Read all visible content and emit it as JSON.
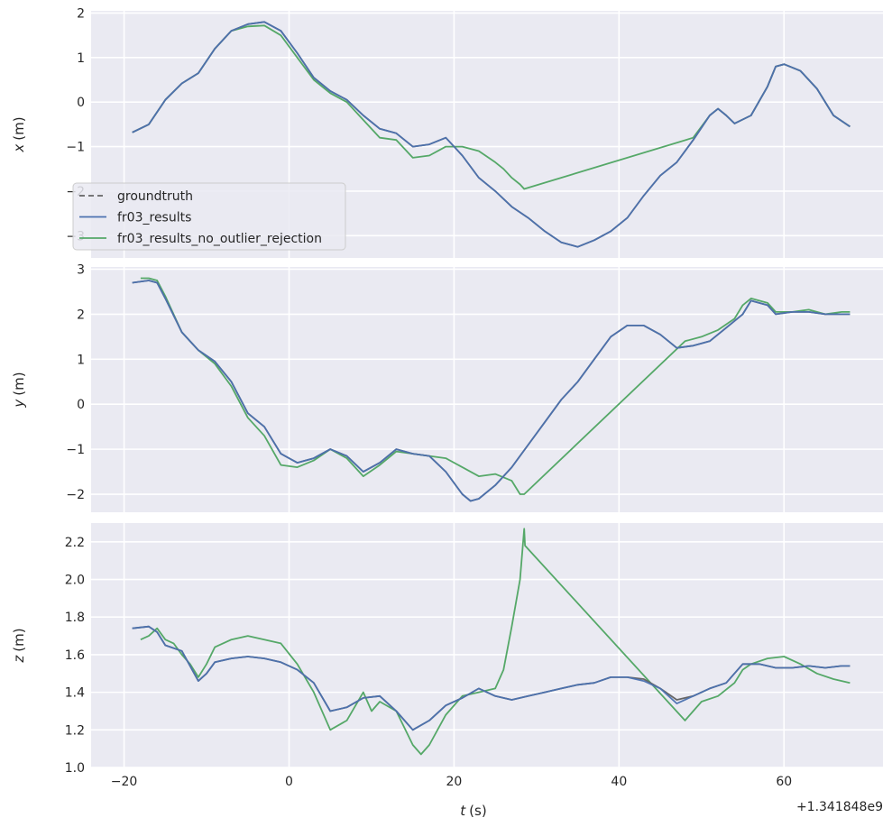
{
  "chart_data": {
    "type": "line",
    "colors": {
      "background": "#eaeaf2",
      "grid": "#ffffff",
      "groundtruth": "#666666",
      "fr03_results": "#4c72b0",
      "fr03_results_no_outlier_rejection": "#55a868"
    },
    "xlabel_var": "t",
    "xlabel_unit": "(s)",
    "x_offset_text": "+1.341848e9",
    "xlim": [
      -24,
      72
    ],
    "xticks": [
      -20,
      0,
      20,
      40,
      60
    ],
    "xtick_labels": [
      "−20",
      "0",
      "20",
      "40",
      "60"
    ],
    "grid": true,
    "legend": {
      "placement": "lower-left of top panel",
      "entries": [
        {
          "label": "groundtruth",
          "style": "dashed",
          "color": "#666666"
        },
        {
          "label": "fr03_results",
          "style": "solid",
          "color": "#4c72b0"
        },
        {
          "label": "fr03_results_no_outlier_rejection",
          "style": "solid",
          "color": "#55a868"
        }
      ]
    },
    "panels": [
      {
        "ylabel_var": "x",
        "ylabel_unit": "(m)",
        "ylim": [
          -3.5,
          2.05
        ],
        "yticks": [
          -3,
          -2,
          -1,
          0,
          1,
          2
        ],
        "ytick_labels": [
          "−3",
          "−2",
          "−1",
          "0",
          "1",
          "2"
        ],
        "series": [
          {
            "name": "groundtruth",
            "x": [
              -19,
              -17,
              -15,
              -13,
              -11,
              -9,
              -7,
              -5,
              -3,
              -1,
              1,
              3,
              5,
              7,
              9,
              11,
              13,
              15,
              17,
              19,
              21,
              23,
              25,
              27,
              29,
              31,
              33,
              35,
              37,
              39,
              41,
              43,
              45,
              47,
              49,
              51,
              52,
              53,
              54,
              56,
              58,
              59,
              60,
              62,
              64,
              66,
              68
            ],
            "y": [
              -0.68,
              -0.5,
              0.05,
              0.42,
              0.65,
              1.2,
              1.6,
              1.75,
              1.8,
              1.6,
              1.1,
              0.55,
              0.25,
              0.05,
              -0.3,
              -0.6,
              -0.7,
              -1.0,
              -0.95,
              -0.8,
              -1.2,
              -1.7,
              -2.0,
              -2.35,
              -2.6,
              -2.9,
              -3.15,
              -3.25,
              -3.1,
              -2.9,
              -2.6,
              -2.1,
              -1.65,
              -1.35,
              -0.85,
              -0.3,
              -0.15,
              -0.3,
              -0.48,
              -0.3,
              0.35,
              0.8,
              0.85,
              0.7,
              0.3,
              -0.3,
              -0.55
            ]
          },
          {
            "name": "fr03_results",
            "x": [
              -19,
              -17,
              -15,
              -13,
              -11,
              -9,
              -7,
              -5,
              -3,
              -1,
              1,
              3,
              5,
              7,
              9,
              11,
              13,
              15,
              17,
              19,
              21,
              23,
              25,
              27,
              29,
              31,
              33,
              35,
              37,
              39,
              41,
              43,
              45,
              47,
              49,
              51,
              52,
              53,
              54,
              56,
              58,
              59,
              60,
              62,
              64,
              66,
              68
            ],
            "y": [
              -0.68,
              -0.5,
              0.05,
              0.42,
              0.65,
              1.2,
              1.6,
              1.75,
              1.8,
              1.6,
              1.1,
              0.55,
              0.25,
              0.05,
              -0.3,
              -0.6,
              -0.7,
              -1.0,
              -0.95,
              -0.8,
              -1.2,
              -1.7,
              -2.0,
              -2.35,
              -2.6,
              -2.9,
              -3.15,
              -3.25,
              -3.1,
              -2.9,
              -2.6,
              -2.1,
              -1.65,
              -1.35,
              -0.85,
              -0.3,
              -0.15,
              -0.3,
              -0.48,
              -0.3,
              0.35,
              0.8,
              0.85,
              0.7,
              0.3,
              -0.3,
              -0.55
            ]
          },
          {
            "name": "fr03_results_no_outlier_rejection",
            "x": [
              -19,
              -17,
              -15,
              -13,
              -11,
              -9,
              -7,
              -5,
              -3,
              -1,
              1,
              3,
              5,
              7,
              9,
              11,
              13,
              15,
              17,
              19,
              21,
              23,
              25,
              26,
              27,
              28,
              28.5,
              49,
              51,
              52,
              53,
              54,
              56,
              58,
              59,
              60,
              62,
              64,
              66,
              68
            ],
            "y": [
              -0.68,
              -0.5,
              0.05,
              0.42,
              0.65,
              1.2,
              1.6,
              1.7,
              1.72,
              1.5,
              1.0,
              0.5,
              0.2,
              0.0,
              -0.4,
              -0.8,
              -0.85,
              -1.25,
              -1.2,
              -1.0,
              -1.0,
              -1.1,
              -1.35,
              -1.5,
              -1.7,
              -1.85,
              -1.95,
              -0.8,
              -0.3,
              -0.15,
              -0.3,
              -0.48,
              -0.3,
              0.35,
              0.8,
              0.85,
              0.7,
              0.3,
              -0.3,
              -0.55
            ]
          }
        ]
      },
      {
        "ylabel_var": "y",
        "ylabel_unit": "(m)",
        "ylim": [
          -2.4,
          3.05
        ],
        "yticks": [
          -2,
          -1,
          0,
          1,
          2,
          3
        ],
        "ytick_labels": [
          "−2",
          "−1",
          "0",
          "1",
          "2",
          "3"
        ],
        "series": [
          {
            "name": "groundtruth",
            "x": [
              -19,
              -17,
              -16,
              -15,
              -13,
              -11,
              -9,
              -7,
              -5,
              -3,
              -1,
              1,
              3,
              5,
              7,
              9,
              11,
              13,
              15,
              17,
              19,
              21,
              22,
              23,
              25,
              27,
              29,
              31,
              33,
              35,
              37,
              39,
              41,
              43,
              45,
              47,
              49,
              51,
              53,
              55,
              56,
              58,
              59,
              61,
              63,
              65,
              67,
              68
            ],
            "y": [
              2.7,
              2.75,
              2.7,
              2.35,
              1.6,
              1.2,
              0.95,
              0.5,
              -0.2,
              -0.5,
              -1.1,
              -1.3,
              -1.2,
              -1.0,
              -1.15,
              -1.5,
              -1.3,
              -1.0,
              -1.1,
              -1.15,
              -1.5,
              -2.0,
              -2.15,
              -2.1,
              -1.8,
              -1.4,
              -0.9,
              -0.4,
              0.1,
              0.5,
              1.0,
              1.5,
              1.75,
              1.75,
              1.55,
              1.25,
              1.3,
              1.4,
              1.7,
              2.0,
              2.3,
              2.2,
              2.0,
              2.05,
              2.05,
              2.0,
              2.0,
              2.0
            ]
          },
          {
            "name": "fr03_results",
            "x": [
              -19,
              -17,
              -16,
              -15,
              -13,
              -11,
              -9,
              -7,
              -5,
              -3,
              -1,
              1,
              3,
              5,
              7,
              9,
              11,
              13,
              15,
              17,
              19,
              21,
              22,
              23,
              25,
              27,
              29,
              31,
              33,
              35,
              37,
              39,
              41,
              43,
              45,
              47,
              49,
              51,
              53,
              55,
              56,
              58,
              59,
              61,
              63,
              65,
              67,
              68
            ],
            "y": [
              2.7,
              2.75,
              2.7,
              2.35,
              1.6,
              1.2,
              0.95,
              0.5,
              -0.2,
              -0.5,
              -1.1,
              -1.3,
              -1.2,
              -1.0,
              -1.15,
              -1.5,
              -1.3,
              -1.0,
              -1.1,
              -1.15,
              -1.5,
              -2.0,
              -2.15,
              -2.1,
              -1.8,
              -1.4,
              -0.9,
              -0.4,
              0.1,
              0.5,
              1.0,
              1.5,
              1.75,
              1.75,
              1.55,
              1.25,
              1.3,
              1.4,
              1.7,
              2.0,
              2.3,
              2.2,
              2.0,
              2.05,
              2.05,
              2.0,
              2.0,
              2.0
            ]
          },
          {
            "name": "fr03_results_no_outlier_rejection",
            "x": [
              -18,
              -17,
              -16,
              -15,
              -13,
              -11,
              -9,
              -7,
              -5,
              -3,
              -1,
              1,
              3,
              5,
              7,
              9,
              11,
              13,
              15,
              17,
              19,
              21,
              23,
              25,
              27,
              28,
              28.5,
              48,
              50,
              52,
              54,
              55,
              56,
              58,
              59,
              61,
              63,
              65,
              67,
              68
            ],
            "y": [
              2.8,
              2.8,
              2.75,
              2.4,
              1.6,
              1.2,
              0.9,
              0.4,
              -0.3,
              -0.7,
              -1.35,
              -1.4,
              -1.25,
              -1.0,
              -1.2,
              -1.6,
              -1.35,
              -1.05,
              -1.1,
              -1.15,
              -1.2,
              -1.4,
              -1.6,
              -1.55,
              -1.7,
              -2.0,
              -2.0,
              1.4,
              1.5,
              1.65,
              1.9,
              2.2,
              2.35,
              2.25,
              2.05,
              2.05,
              2.1,
              2.0,
              2.05,
              2.05
            ]
          }
        ]
      },
      {
        "ylabel_var": "z",
        "ylabel_unit": "(m)",
        "ylim": [
          1.0,
          2.3
        ],
        "yticks": [
          1.0,
          1.2,
          1.4,
          1.6,
          1.8,
          2.0,
          2.2
        ],
        "ytick_labels": [
          "1.0",
          "1.2",
          "1.4",
          "1.6",
          "1.8",
          "2.0",
          "2.2"
        ],
        "series": [
          {
            "name": "groundtruth",
            "x": [
              -19,
              -17,
              -16,
              -15,
              -13,
              -11,
              -10,
              -9,
              -7,
              -5,
              -3,
              -1,
              1,
              3,
              5,
              7,
              9,
              11,
              13,
              15,
              17,
              19,
              21,
              23,
              25,
              27,
              29,
              31,
              33,
              35,
              37,
              39,
              41,
              43,
              45,
              47,
              49,
              51,
              53,
              55,
              57,
              59,
              61,
              63,
              65,
              67,
              68
            ],
            "y": [
              1.74,
              1.75,
              1.72,
              1.65,
              1.62,
              1.46,
              1.5,
              1.56,
              1.58,
              1.59,
              1.58,
              1.56,
              1.52,
              1.45,
              1.3,
              1.32,
              1.37,
              1.38,
              1.3,
              1.2,
              1.25,
              1.33,
              1.37,
              1.42,
              1.38,
              1.36,
              1.38,
              1.4,
              1.42,
              1.44,
              1.45,
              1.48,
              1.48,
              1.47,
              1.42,
              1.36,
              1.38,
              1.42,
              1.45,
              1.55,
              1.55,
              1.53,
              1.53,
              1.54,
              1.53,
              1.54,
              1.54
            ]
          },
          {
            "name": "fr03_results",
            "x": [
              -19,
              -17,
              -16,
              -15,
              -13,
              -11,
              -10,
              -9,
              -7,
              -5,
              -3,
              -1,
              1,
              3,
              5,
              7,
              9,
              11,
              13,
              15,
              17,
              19,
              21,
              23,
              25,
              27,
              29,
              31,
              33,
              35,
              37,
              39,
              41,
              43,
              45,
              47,
              49,
              51,
              53,
              55,
              57,
              59,
              61,
              63,
              65,
              67,
              68
            ],
            "y": [
              1.74,
              1.75,
              1.72,
              1.65,
              1.62,
              1.46,
              1.5,
              1.56,
              1.58,
              1.59,
              1.58,
              1.56,
              1.52,
              1.45,
              1.3,
              1.32,
              1.37,
              1.38,
              1.3,
              1.2,
              1.25,
              1.33,
              1.37,
              1.42,
              1.38,
              1.36,
              1.38,
              1.4,
              1.42,
              1.44,
              1.45,
              1.48,
              1.48,
              1.46,
              1.42,
              1.34,
              1.38,
              1.42,
              1.45,
              1.55,
              1.55,
              1.53,
              1.53,
              1.54,
              1.53,
              1.54,
              1.54
            ]
          },
          {
            "name": "fr03_results_no_outlier_rejection",
            "x": [
              -18,
              -17,
              -16,
              -15,
              -14,
              -13,
              -12,
              -11,
              -10,
              -9,
              -7,
              -5,
              -3,
              -1,
              1,
              3,
              5,
              7,
              9,
              10,
              11,
              13,
              15,
              16,
              17,
              19,
              21,
              23,
              25,
              26,
              27,
              28,
              28.5,
              28.6,
              48,
              49,
              50,
              52,
              54,
              55,
              56,
              58,
              60,
              62,
              64,
              66,
              68
            ],
            "y": [
              1.68,
              1.7,
              1.74,
              1.68,
              1.66,
              1.6,
              1.55,
              1.48,
              1.55,
              1.64,
              1.68,
              1.7,
              1.68,
              1.66,
              1.55,
              1.4,
              1.2,
              1.25,
              1.4,
              1.3,
              1.35,
              1.3,
              1.12,
              1.07,
              1.12,
              1.28,
              1.38,
              1.4,
              1.42,
              1.52,
              1.75,
              2.0,
              2.27,
              2.18,
              1.25,
              1.3,
              1.35,
              1.38,
              1.45,
              1.52,
              1.55,
              1.58,
              1.59,
              1.55,
              1.5,
              1.47,
              1.45
            ]
          }
        ]
      }
    ]
  }
}
